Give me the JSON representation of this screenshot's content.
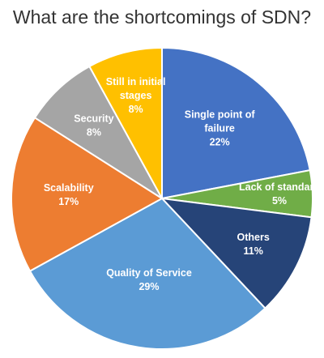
{
  "chart_data": {
    "type": "pie",
    "title": "What are the shortcomings of SDN?",
    "slices": [
      {
        "label": "Single point of failure",
        "display_lines": [
          "Single point of",
          "failure"
        ],
        "value": 22,
        "value_label": "22%",
        "color": "#4472c4",
        "label_color": "#ffffff"
      },
      {
        "label": "Lack of standard",
        "display_lines": [
          "Lack of standard"
        ],
        "value": 5,
        "value_label": "5%",
        "color": "#70ad47",
        "label_color": "#ffffff"
      },
      {
        "label": "Others",
        "display_lines": [
          "Others"
        ],
        "value": 11,
        "value_label": "11%",
        "color": "#264478",
        "label_color": "#ffffff"
      },
      {
        "label": "Quality of Service",
        "display_lines": [
          "Quality of Service"
        ],
        "value": 29,
        "value_label": "29%",
        "color": "#5b9bd5",
        "label_color": "#ffffff"
      },
      {
        "label": "Scalability",
        "display_lines": [
          "Scalability"
        ],
        "value": 17,
        "value_label": "17%",
        "color": "#ed7d31",
        "label_color": "#ffffff"
      },
      {
        "label": "Security",
        "display_lines": [
          "Security"
        ],
        "value": 8,
        "value_label": "8%",
        "color": "#a5a5a5",
        "label_color": "#ffffff"
      },
      {
        "label": "Still in initial stages",
        "display_lines": [
          "Still in initial",
          "stages"
        ],
        "value": 8,
        "value_label": "8%",
        "color": "#ffc000",
        "label_color": "#ffffff"
      }
    ],
    "legend": "none"
  }
}
